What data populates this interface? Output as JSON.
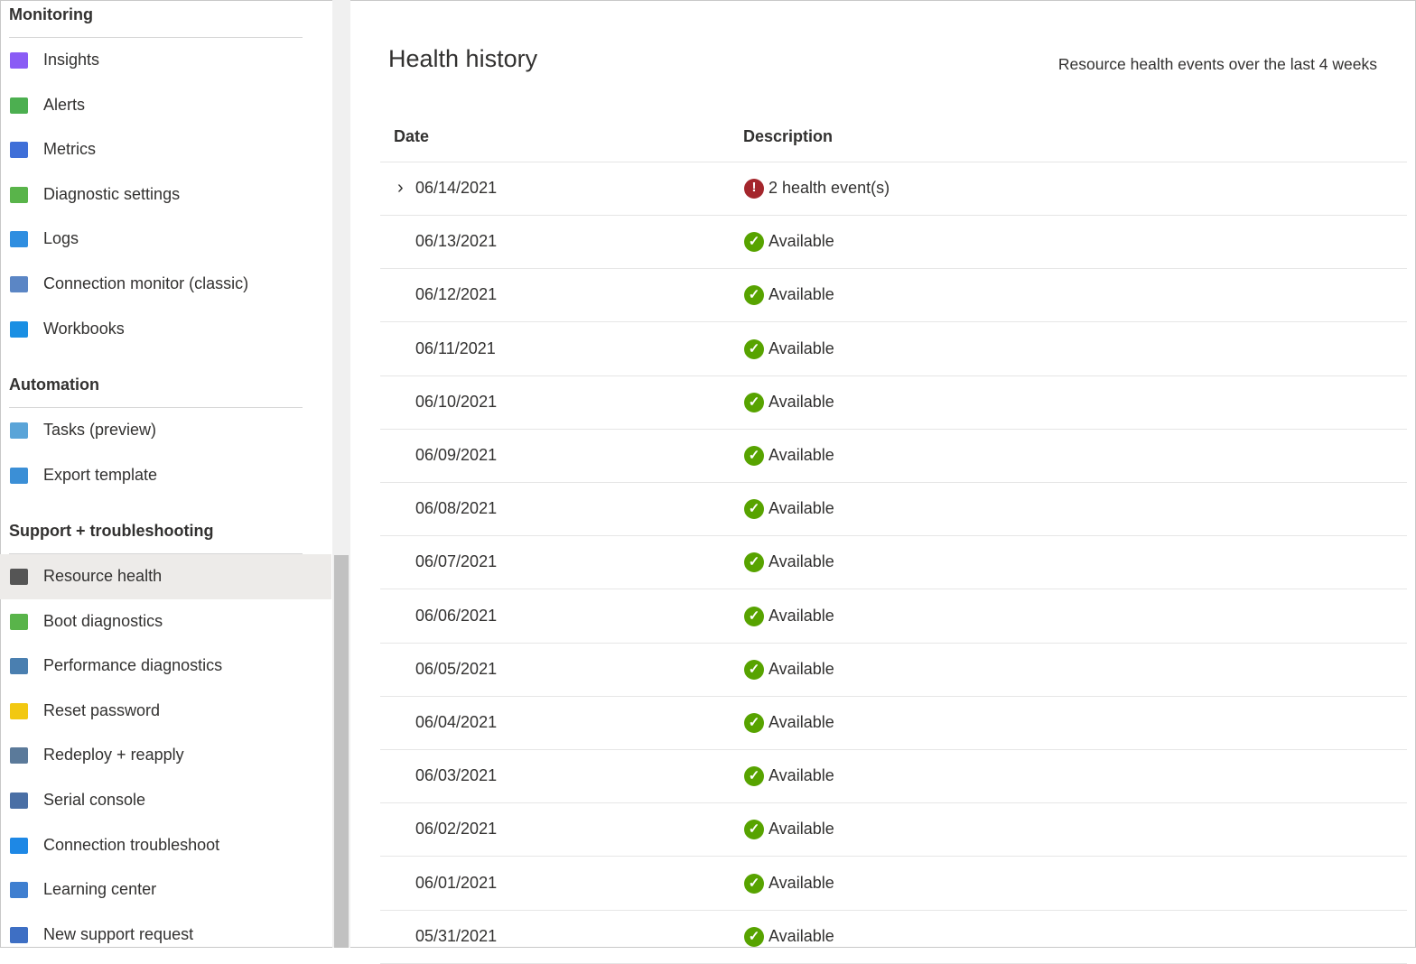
{
  "sidebar": {
    "sections": [
      {
        "title": "Monitoring",
        "items": [
          "Insights",
          "Alerts",
          "Metrics",
          "Diagnostic settings",
          "Logs",
          "Connection monitor (classic)",
          "Workbooks"
        ]
      },
      {
        "title": "Automation",
        "items": [
          "Tasks (preview)",
          "Export template"
        ]
      },
      {
        "title": "Support + troubleshooting",
        "items": [
          "Resource health",
          "Boot diagnostics",
          "Performance diagnostics",
          "Reset password",
          "Redeploy + reapply",
          "Serial console",
          "Connection troubleshoot",
          "Learning center",
          "New support request"
        ]
      }
    ]
  },
  "main": {
    "title": "Health history",
    "subtitle": "Resource health events over the last 4 weeks",
    "columns": [
      "Date",
      "Description"
    ],
    "rows": [
      [
        "06/14/2021",
        "2 health event(s)"
      ],
      [
        "06/13/2021",
        "Available"
      ],
      [
        "06/12/2021",
        "Available"
      ],
      [
        "06/11/2021",
        "Available"
      ],
      [
        "06/10/2021",
        "Available"
      ],
      [
        "06/09/2021",
        "Available"
      ],
      [
        "06/08/2021",
        "Available"
      ],
      [
        "06/07/2021",
        "Available"
      ],
      [
        "06/06/2021",
        "Available"
      ],
      [
        "06/05/2021",
        "Available"
      ],
      [
        "06/04/2021",
        "Available"
      ],
      [
        "06/03/2021",
        "Available"
      ],
      [
        "06/02/2021",
        "Available"
      ],
      [
        "06/01/2021",
        "Available"
      ],
      [
        "05/31/2021",
        "Available"
      ]
    ]
  }
}
